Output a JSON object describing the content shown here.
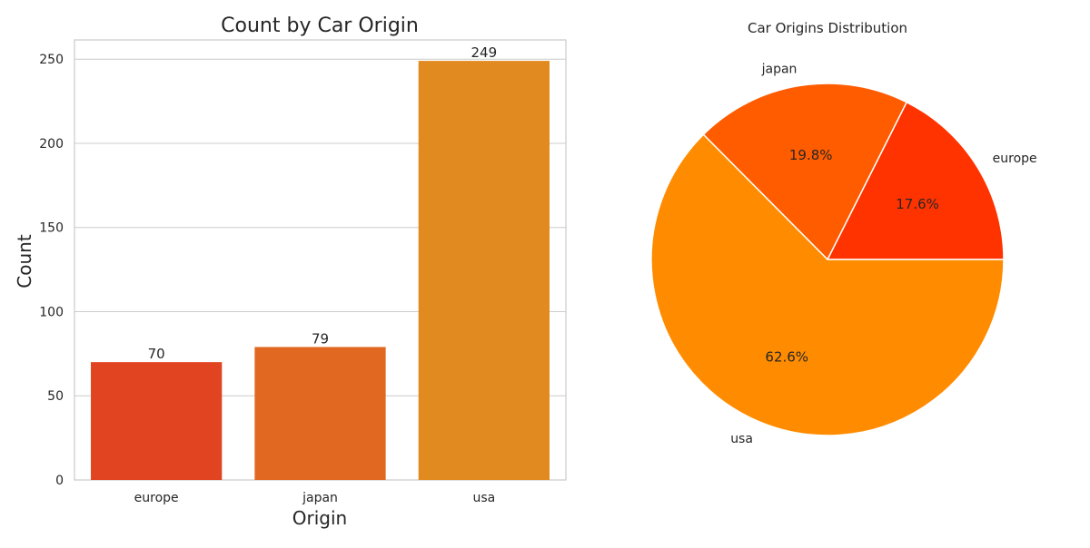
{
  "chart_data": [
    {
      "type": "bar",
      "title": "Count by Car Origin",
      "xlabel": "Origin",
      "ylabel": "Count",
      "categories": [
        "europe",
        "japan",
        "usa"
      ],
      "values": [
        70,
        79,
        249
      ],
      "data_labels": [
        "70",
        "79",
        "249"
      ],
      "bar_colors": [
        "#e04420",
        "#e06820",
        "#e08a20"
      ],
      "yticks": [
        0,
        50,
        100,
        150,
        200,
        250
      ],
      "ytick_labels": [
        "0",
        "50",
        "100",
        "150",
        "200",
        "250"
      ],
      "ylim": [
        0,
        261.45
      ],
      "grid": "horizontal",
      "legend": "none"
    },
    {
      "type": "pie",
      "title": "Car Origins Distribution",
      "labels": [
        "europe",
        "japan",
        "usa"
      ],
      "values": [
        70,
        79,
        249
      ],
      "percent_labels": [
        "17.6%",
        "19.8%",
        "62.6%"
      ],
      "colors": [
        "#ff3300",
        "#ff5c00",
        "#ff8c00"
      ],
      "start_angle": 0,
      "direction": "counterclockwise",
      "legend": "none"
    }
  ]
}
